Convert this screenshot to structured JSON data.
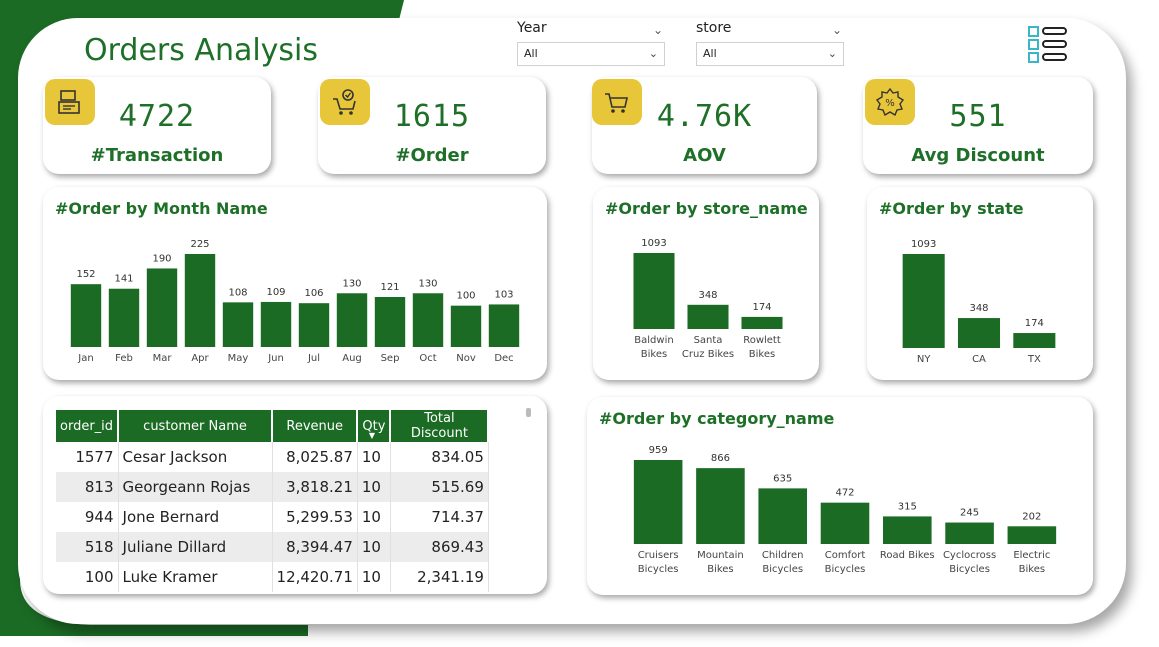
{
  "header": {
    "title": "Orders Analysis",
    "year_slicer": {
      "label": "Year",
      "value": "All"
    },
    "store_slicer": {
      "label": "store",
      "value": "All"
    },
    "menu_icon": "list-menu-icon"
  },
  "colors": {
    "primary_green": "#1b6b25",
    "accent_yellow": "#e8c63a",
    "cyan": "#3ab6c8"
  },
  "kpis": [
    {
      "value": "4722",
      "label": "#Transaction",
      "icon": "cash-register-icon"
    },
    {
      "value": "1615",
      "label": "#Order",
      "icon": "shopping-cart-check-icon"
    },
    {
      "value": "4.76K",
      "label": "AOV",
      "icon": "cart-icon"
    },
    {
      "value": "551",
      "label": "Avg Discount",
      "icon": "discount-badge-icon"
    }
  ],
  "chart_data": [
    {
      "type": "bar",
      "title": "#Order by Month Name",
      "categories": [
        "Jan",
        "Feb",
        "Mar",
        "Apr",
        "May",
        "Jun",
        "Jul",
        "Aug",
        "Sep",
        "Oct",
        "Nov",
        "Dec"
      ],
      "values": [
        152,
        141,
        190,
        225,
        108,
        109,
        106,
        130,
        121,
        130,
        100,
        103
      ],
      "data_labels": true
    },
    {
      "type": "bar",
      "title": "#Order by store_name",
      "categories": [
        [
          "Baldwin",
          "Bikes"
        ],
        [
          "Santa",
          "Cruz Bikes"
        ],
        [
          "Rowlett",
          "Bikes"
        ]
      ],
      "values": [
        1093,
        348,
        174
      ],
      "data_labels": true
    },
    {
      "type": "bar",
      "title": "#Order by state",
      "categories": [
        [
          "NY"
        ],
        [
          "CA"
        ],
        [
          "TX"
        ]
      ],
      "values": [
        1093,
        348,
        174
      ],
      "data_labels": true
    },
    {
      "type": "bar",
      "title": "#Order by category_name",
      "categories": [
        [
          "Cruisers",
          "Bicycles"
        ],
        [
          "Mountain",
          "Bikes"
        ],
        [
          "Children",
          "Bicycles"
        ],
        [
          "Comfort",
          "Bicycles"
        ],
        [
          "Road Bikes"
        ],
        [
          "Cyclocross",
          "Bicycles"
        ],
        [
          "Electric",
          "Bikes"
        ]
      ],
      "values": [
        959,
        866,
        635,
        472,
        315,
        245,
        202
      ],
      "data_labels": true
    }
  ],
  "table": {
    "columns": [
      "order_id",
      "customer Name",
      "Revenue",
      "Qty",
      "Total Discount"
    ],
    "rows": [
      [
        "1577",
        "Cesar Jackson",
        "8,025.87",
        "10",
        "834.05"
      ],
      [
        "813",
        "Georgeann Rojas",
        "3,818.21",
        "10",
        "515.69"
      ],
      [
        "944",
        "Jone Bernard",
        "5,299.53",
        "10",
        "714.37"
      ],
      [
        "518",
        "Juliane Dillard",
        "8,394.47",
        "10",
        "869.43"
      ],
      [
        "100",
        "Luke Kramer",
        "12,420.71",
        "10",
        "2,341.19"
      ]
    ]
  }
}
